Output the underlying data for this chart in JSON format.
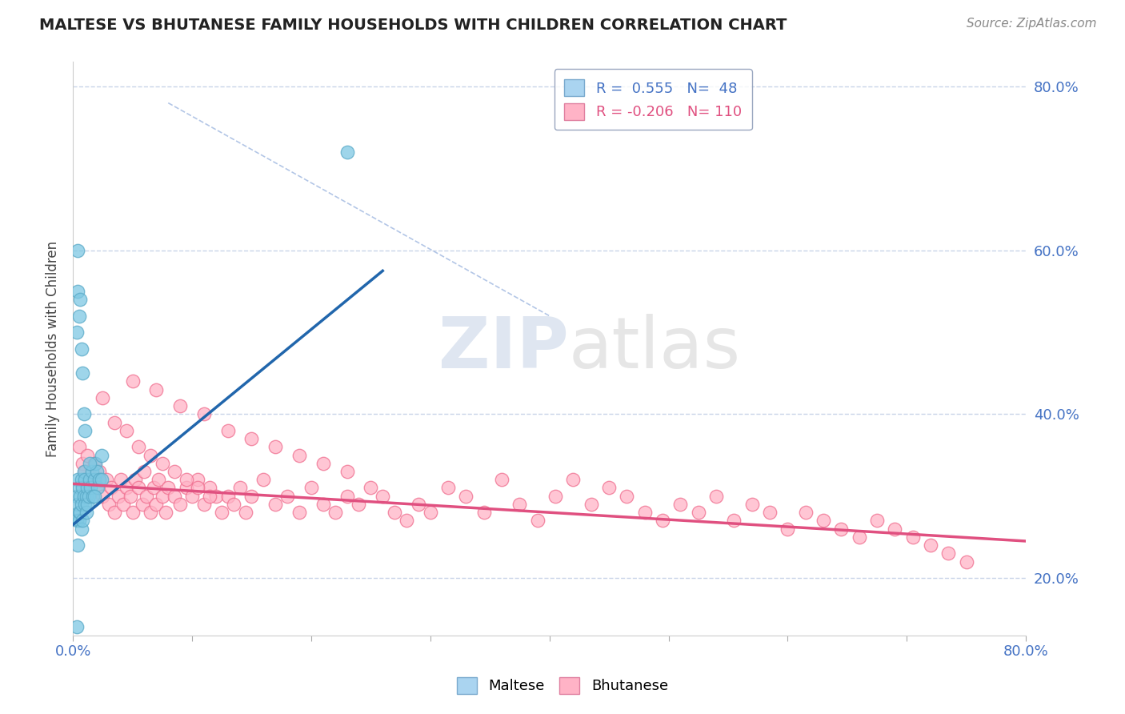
{
  "title": "MALTESE VS BHUTANESE FAMILY HOUSEHOLDS WITH CHILDREN CORRELATION CHART",
  "source": "Source: ZipAtlas.com",
  "ylabel": "Family Households with Children",
  "xlim": [
    0.0,
    0.8
  ],
  "ylim": [
    0.13,
    0.83
  ],
  "maltese_R": 0.555,
  "maltese_N": 48,
  "bhutanese_R": -0.206,
  "bhutanese_N": 110,
  "maltese_color": "#7ec8e3",
  "maltese_edge": "#5aaac8",
  "bhutanese_color": "#ffb3c6",
  "bhutanese_edge": "#f07090",
  "maltese_trend_color": "#2166ac",
  "bhutanese_trend_color": "#e05080",
  "grid_color": "#c8d4e8",
  "dashed_line_color": "#a0b8e0",
  "legend_box_maltese": "#aad4f0",
  "legend_box_bhutanese": "#ffb3c6",
  "legend_edge_color": "#8090b0",
  "watermark_color": "#d8dce8",
  "title_color": "#222222",
  "source_color": "#888888",
  "tick_label_color": "#4472c4",
  "ylabel_color": "#444444",
  "maltese_x": [
    0.003,
    0.003,
    0.004,
    0.004,
    0.004,
    0.005,
    0.005,
    0.005,
    0.006,
    0.006,
    0.007,
    0.007,
    0.007,
    0.008,
    0.008,
    0.009,
    0.009,
    0.01,
    0.01,
    0.011,
    0.011,
    0.012,
    0.012,
    0.013,
    0.014,
    0.015,
    0.016,
    0.017,
    0.018,
    0.019,
    0.02,
    0.021,
    0.022,
    0.024,
    0.003,
    0.004,
    0.004,
    0.005,
    0.006,
    0.007,
    0.008,
    0.009,
    0.01,
    0.014,
    0.018,
    0.024,
    0.003,
    0.23
  ],
  "maltese_y": [
    0.3,
    0.27,
    0.29,
    0.24,
    0.32,
    0.28,
    0.27,
    0.31,
    0.3,
    0.28,
    0.32,
    0.29,
    0.26,
    0.31,
    0.27,
    0.3,
    0.33,
    0.29,
    0.32,
    0.3,
    0.28,
    0.31,
    0.29,
    0.3,
    0.32,
    0.31,
    0.33,
    0.3,
    0.32,
    0.34,
    0.33,
    0.31,
    0.32,
    0.35,
    0.5,
    0.6,
    0.55,
    0.52,
    0.54,
    0.48,
    0.45,
    0.4,
    0.38,
    0.34,
    0.3,
    0.32,
    0.14,
    0.72
  ],
  "bhutanese_x": [
    0.005,
    0.008,
    0.01,
    0.012,
    0.015,
    0.018,
    0.02,
    0.022,
    0.025,
    0.028,
    0.03,
    0.032,
    0.035,
    0.038,
    0.04,
    0.042,
    0.045,
    0.048,
    0.05,
    0.052,
    0.055,
    0.058,
    0.06,
    0.062,
    0.065,
    0.068,
    0.07,
    0.072,
    0.075,
    0.078,
    0.08,
    0.085,
    0.09,
    0.095,
    0.1,
    0.105,
    0.11,
    0.115,
    0.12,
    0.125,
    0.13,
    0.135,
    0.14,
    0.145,
    0.15,
    0.16,
    0.17,
    0.18,
    0.19,
    0.2,
    0.21,
    0.22,
    0.23,
    0.24,
    0.25,
    0.26,
    0.27,
    0.28,
    0.29,
    0.3,
    0.315,
    0.33,
    0.345,
    0.36,
    0.375,
    0.39,
    0.405,
    0.42,
    0.435,
    0.45,
    0.465,
    0.48,
    0.495,
    0.51,
    0.525,
    0.54,
    0.555,
    0.57,
    0.585,
    0.6,
    0.615,
    0.63,
    0.645,
    0.66,
    0.675,
    0.69,
    0.705,
    0.72,
    0.735,
    0.75,
    0.05,
    0.07,
    0.09,
    0.11,
    0.13,
    0.15,
    0.17,
    0.19,
    0.21,
    0.23,
    0.025,
    0.035,
    0.045,
    0.055,
    0.065,
    0.075,
    0.085,
    0.095,
    0.105,
    0.115
  ],
  "bhutanese_y": [
    0.36,
    0.34,
    0.33,
    0.35,
    0.32,
    0.34,
    0.31,
    0.33,
    0.3,
    0.32,
    0.29,
    0.31,
    0.28,
    0.3,
    0.32,
    0.29,
    0.31,
    0.3,
    0.28,
    0.32,
    0.31,
    0.29,
    0.33,
    0.3,
    0.28,
    0.31,
    0.29,
    0.32,
    0.3,
    0.28,
    0.31,
    0.3,
    0.29,
    0.31,
    0.3,
    0.32,
    0.29,
    0.31,
    0.3,
    0.28,
    0.3,
    0.29,
    0.31,
    0.28,
    0.3,
    0.32,
    0.29,
    0.3,
    0.28,
    0.31,
    0.29,
    0.28,
    0.3,
    0.29,
    0.31,
    0.3,
    0.28,
    0.27,
    0.29,
    0.28,
    0.31,
    0.3,
    0.28,
    0.32,
    0.29,
    0.27,
    0.3,
    0.32,
    0.29,
    0.31,
    0.3,
    0.28,
    0.27,
    0.29,
    0.28,
    0.3,
    0.27,
    0.29,
    0.28,
    0.26,
    0.28,
    0.27,
    0.26,
    0.25,
    0.27,
    0.26,
    0.25,
    0.24,
    0.23,
    0.22,
    0.44,
    0.43,
    0.41,
    0.4,
    0.38,
    0.37,
    0.36,
    0.35,
    0.34,
    0.33,
    0.42,
    0.39,
    0.38,
    0.36,
    0.35,
    0.34,
    0.33,
    0.32,
    0.31,
    0.3
  ],
  "maltese_trend_x": [
    0.0,
    0.26
  ],
  "maltese_trend_y": [
    0.265,
    0.575
  ],
  "bhutanese_trend_x": [
    0.0,
    0.8
  ],
  "bhutanese_trend_y": [
    0.315,
    0.245
  ],
  "dashed_line_x": [
    0.08,
    0.4
  ],
  "dashed_line_y": [
    0.78,
    0.52
  ]
}
